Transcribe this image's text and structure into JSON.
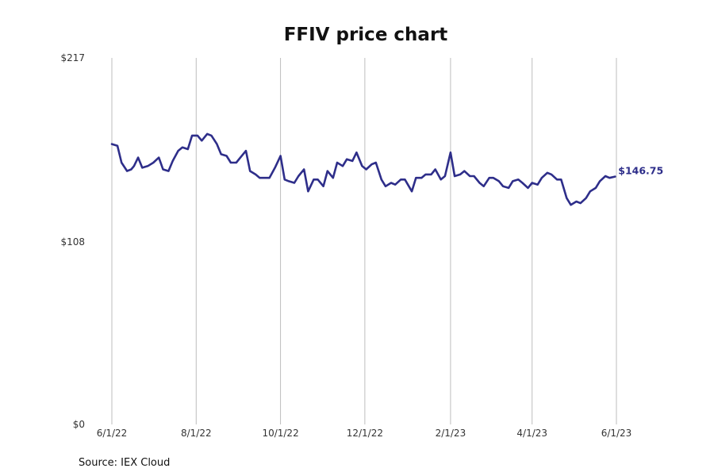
{
  "chart_data": {
    "type": "line",
    "title": "FFIV price chart",
    "xlabel": "",
    "ylabel": "",
    "ylim": [
      0,
      217
    ],
    "y_ticks": [
      "$0",
      "$108",
      "$217"
    ],
    "x_ticks": [
      "6/1/22",
      "8/1/22",
      "10/1/22",
      "12/1/22",
      "2/1/23",
      "4/1/23",
      "6/1/23"
    ],
    "grid": "vertical",
    "line_color": "#2e2e8a",
    "end_label": "$146.75",
    "source": "Source: IEX Cloud",
    "x": [
      "2022-06-01",
      "2022-06-05",
      "2022-06-08",
      "2022-06-12",
      "2022-06-15",
      "2022-06-17",
      "2022-06-20",
      "2022-06-23",
      "2022-06-27",
      "2022-07-01",
      "2022-07-05",
      "2022-07-08",
      "2022-07-12",
      "2022-07-15",
      "2022-07-19",
      "2022-07-22",
      "2022-07-26",
      "2022-07-29",
      "2022-08-02",
      "2022-08-05",
      "2022-08-09",
      "2022-08-12",
      "2022-08-16",
      "2022-08-19",
      "2022-08-23",
      "2022-08-26",
      "2022-08-30",
      "2022-09-02",
      "2022-09-06",
      "2022-09-09",
      "2022-09-13",
      "2022-09-16",
      "2022-09-20",
      "2022-09-23",
      "2022-09-27",
      "2022-10-01",
      "2022-10-04",
      "2022-10-07",
      "2022-10-11",
      "2022-10-14",
      "2022-10-18",
      "2022-10-21",
      "2022-10-25",
      "2022-10-28",
      "2022-11-01",
      "2022-11-04",
      "2022-11-08",
      "2022-11-11",
      "2022-11-15",
      "2022-11-18",
      "2022-11-22",
      "2022-11-25",
      "2022-11-29",
      "2022-12-02",
      "2022-12-06",
      "2022-12-09",
      "2022-12-13",
      "2022-12-16",
      "2022-12-20",
      "2022-12-23",
      "2022-12-27",
      "2022-12-30",
      "2023-01-04",
      "2023-01-07",
      "2023-01-11",
      "2023-01-14",
      "2023-01-18",
      "2023-01-21",
      "2023-01-25",
      "2023-01-28",
      "2023-02-01",
      "2023-02-04",
      "2023-02-08",
      "2023-02-11",
      "2023-02-15",
      "2023-02-18",
      "2023-02-22",
      "2023-02-25",
      "2023-03-01",
      "2023-03-04",
      "2023-03-08",
      "2023-03-11",
      "2023-03-15",
      "2023-03-18",
      "2023-03-22",
      "2023-03-25",
      "2023-03-29",
      "2023-04-01",
      "2023-04-05",
      "2023-04-08",
      "2023-04-12",
      "2023-04-15",
      "2023-04-19",
      "2023-04-22",
      "2023-04-26",
      "2023-04-29",
      "2023-05-03",
      "2023-05-06",
      "2023-05-10",
      "2023-05-13",
      "2023-05-17",
      "2023-05-20",
      "2023-05-24",
      "2023-05-27",
      "2023-05-31"
    ],
    "values": [
      166,
      165,
      155,
      150,
      151,
      153,
      158,
      152,
      153,
      155,
      158,
      151,
      150,
      156,
      162,
      164,
      163,
      171,
      171,
      168,
      172,
      171,
      166,
      160,
      159,
      155,
      155,
      158,
      162,
      150,
      148,
      146,
      146,
      146,
      152,
      159,
      145,
      144,
      143,
      147,
      151,
      138,
      145,
      145,
      141,
      150,
      146,
      155,
      153,
      157,
      156,
      161,
      153,
      151,
      154,
      155,
      145,
      141,
      143,
      142,
      145,
      145,
      138,
      146,
      146,
      148,
      148,
      151,
      145,
      147,
      161,
      147,
      148,
      150,
      147,
      147,
      143,
      141,
      146,
      146,
      144,
      141,
      140,
      144,
      145,
      143,
      140,
      143,
      142,
      146,
      149,
      148,
      145,
      145,
      134,
      130,
      132,
      131,
      134,
      138,
      140,
      144,
      147,
      146,
      146.75
    ]
  }
}
